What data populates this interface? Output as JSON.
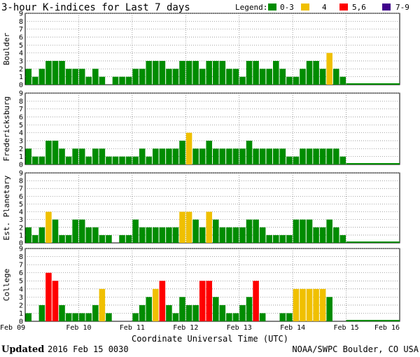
{
  "title": "3-hour K-indices for Last 7 days",
  "legend": {
    "label": "Legend:",
    "items": [
      {
        "label": "0-3",
        "color": "#008c00"
      },
      {
        "label": "4",
        "color": "#f0c000"
      },
      {
        "label": "5,6",
        "color": "#ff0000"
      },
      {
        "label": "7-9",
        "color": "#40008c"
      }
    ]
  },
  "chart_data": {
    "type": "bar",
    "xlabel": "Coordinate Universal Time (UTC)",
    "x_ticks": [
      "Feb 09",
      "Feb 10",
      "Feb 11",
      "Feb 12",
      "Feb 13",
      "Feb 14",
      "Feb 15",
      "Feb 16"
    ],
    "y_ticks": [
      "0",
      "1",
      "2",
      "3",
      "4",
      "5",
      "6",
      "7",
      "8",
      "9"
    ],
    "ylim": [
      0,
      9
    ],
    "bins_per_day": 8,
    "days": 7,
    "panels": [
      {
        "name": "Boulder",
        "values": [
          2,
          1,
          2,
          3,
          3,
          3,
          2,
          2,
          2,
          1,
          2,
          1,
          0,
          1,
          1,
          1,
          2,
          2,
          3,
          3,
          3,
          2,
          2,
          3,
          3,
          3,
          2,
          3,
          3,
          3,
          2,
          2,
          1,
          3,
          3,
          2,
          2,
          3,
          2,
          1,
          1,
          2,
          3,
          3,
          2,
          4,
          2,
          1
        ]
      },
      {
        "name": "Fredericksburg",
        "values": [
          2,
          1,
          1,
          3,
          3,
          2,
          1,
          2,
          2,
          1,
          2,
          2,
          1,
          1,
          1,
          1,
          1,
          2,
          1,
          2,
          2,
          2,
          2,
          3,
          4,
          2,
          2,
          3,
          2,
          2,
          2,
          2,
          2,
          3,
          2,
          2,
          2,
          2,
          2,
          1,
          1,
          2,
          2,
          2,
          2,
          2,
          2,
          1
        ]
      },
      {
        "name": "Est. Planetary",
        "values": [
          2,
          1,
          2,
          4,
          3,
          1,
          1,
          3,
          3,
          2,
          2,
          1,
          1,
          0,
          1,
          1,
          3,
          2,
          2,
          2,
          2,
          2,
          2,
          4,
          4,
          3,
          2,
          4,
          3,
          2,
          2,
          2,
          2,
          3,
          3,
          2,
          1,
          1,
          1,
          1,
          3,
          3,
          3,
          2,
          2,
          3,
          2,
          1
        ]
      },
      {
        "name": "College",
        "values": [
          1,
          0,
          2,
          6,
          5,
          2,
          1,
          1,
          1,
          1,
          2,
          4,
          1,
          0,
          0,
          0,
          1,
          2,
          3,
          4,
          5,
          2,
          1,
          3,
          2,
          2,
          5,
          5,
          3,
          2,
          1,
          1,
          2,
          3,
          5,
          1,
          0,
          0,
          1,
          1,
          4,
          4,
          4,
          4,
          4,
          3,
          0,
          0
        ]
      }
    ]
  },
  "footer": {
    "updated_label": "Updated",
    "updated_value": "2016 Feb 15 0030",
    "source": "NOAA/SWPC Boulder, CO USA"
  }
}
